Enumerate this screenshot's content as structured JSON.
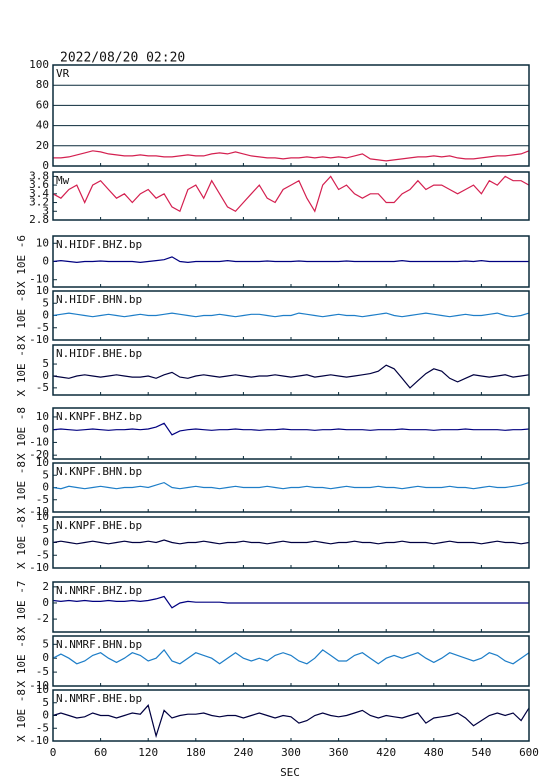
{
  "header": "2022/08/20 02:20",
  "x_axis": {
    "label": "SEC",
    "xlim": [
      0,
      600
    ],
    "xticks": [
      0,
      60,
      120,
      180,
      240,
      300,
      360,
      420,
      480,
      540,
      600
    ]
  },
  "x": [
    0,
    10,
    20,
    30,
    40,
    50,
    60,
    70,
    80,
    90,
    100,
    110,
    120,
    130,
    140,
    150,
    160,
    170,
    180,
    190,
    200,
    210,
    220,
    230,
    240,
    250,
    260,
    270,
    280,
    290,
    300,
    310,
    320,
    330,
    340,
    350,
    360,
    370,
    380,
    390,
    400,
    410,
    420,
    430,
    440,
    450,
    460,
    470,
    480,
    490,
    500,
    510,
    520,
    530,
    540,
    550,
    560,
    570,
    580,
    590,
    600
  ],
  "chart_data": [
    {
      "type": "line",
      "label": "VR",
      "color": "#d42050",
      "grid": true,
      "ylim": [
        0,
        100
      ],
      "yticks": [
        0,
        20,
        40,
        60,
        80,
        100
      ],
      "values": [
        8,
        8,
        9,
        11,
        13,
        15,
        14,
        12,
        11,
        10,
        10,
        11,
        10,
        10,
        9,
        9,
        10,
        11,
        10,
        10,
        12,
        13,
        12,
        14,
        12,
        10,
        9,
        8,
        8,
        7,
        8,
        8,
        9,
        8,
        9,
        8,
        9,
        8,
        10,
        12,
        7,
        6,
        5,
        6,
        7,
        8,
        9,
        9,
        10,
        9,
        10,
        8,
        7,
        7,
        8,
        9,
        10,
        10,
        11,
        12,
        15
      ]
    },
    {
      "type": "line",
      "label": "Mw",
      "color": "#d42050",
      "grid": false,
      "ylim": [
        2.8,
        3.9
      ],
      "yticks": [
        2.8,
        3.0,
        3.2,
        3.4,
        3.6,
        3.8
      ],
      "values": [
        3.4,
        3.3,
        3.5,
        3.6,
        3.2,
        3.6,
        3.7,
        3.5,
        3.3,
        3.4,
        3.2,
        3.4,
        3.5,
        3.3,
        3.4,
        3.1,
        3.0,
        3.5,
        3.6,
        3.3,
        3.7,
        3.4,
        3.1,
        3.0,
        3.2,
        3.4,
        3.6,
        3.3,
        3.2,
        3.5,
        3.6,
        3.7,
        3.3,
        3.0,
        3.6,
        3.8,
        3.5,
        3.6,
        3.4,
        3.3,
        3.4,
        3.4,
        3.2,
        3.2,
        3.4,
        3.5,
        3.7,
        3.5,
        3.6,
        3.6,
        3.5,
        3.4,
        3.5,
        3.6,
        3.4,
        3.7,
        3.6,
        3.8,
        3.7,
        3.7,
        3.6
      ]
    },
    {
      "type": "line",
      "label": "N.HIDF.BHZ.bp",
      "ylabel": "X 10E -6",
      "color": "#000080",
      "grid": false,
      "ylim": [
        -14,
        14
      ],
      "yticks": [
        -10,
        0,
        10
      ],
      "values": [
        0,
        0.5,
        0,
        -0.5,
        0,
        0,
        0.3,
        0,
        0,
        0,
        0,
        -0.5,
        0,
        0.5,
        1,
        2.5,
        0,
        -0.5,
        0,
        0,
        0,
        0,
        0.5,
        0,
        0,
        0,
        0,
        0.3,
        0,
        0,
        0,
        0.3,
        0,
        0,
        0,
        0,
        0,
        0.3,
        0,
        0,
        0,
        0,
        0,
        0,
        0.5,
        0,
        0,
        0,
        0,
        0,
        0,
        0,
        0.3,
        0,
        0.5,
        0,
        0,
        0,
        0,
        0,
        0
      ]
    },
    {
      "type": "line",
      "label": "N.HIDF.BHN.bp",
      "ylabel": "X 10E -8",
      "color": "#1e7ec8",
      "grid": false,
      "ylim": [
        -10,
        10
      ],
      "yticks": [
        -10,
        -5,
        0,
        5,
        10
      ],
      "values": [
        0,
        0.5,
        1,
        0.5,
        0,
        -0.5,
        0,
        0.5,
        0,
        -0.5,
        0,
        0.5,
        0,
        0,
        0.5,
        1,
        0.5,
        0,
        -0.5,
        0,
        0,
        0.5,
        0,
        -0.5,
        0,
        0.5,
        0.5,
        0,
        -0.5,
        0,
        0,
        1,
        0.5,
        0,
        -0.5,
        0,
        0.5,
        0,
        0,
        -0.5,
        0,
        0.5,
        1,
        0,
        -0.5,
        0,
        0.5,
        1,
        0.5,
        0,
        -0.5,
        0,
        0.5,
        0,
        0,
        0.5,
        1,
        0,
        -0.5,
        0,
        1
      ]
    },
    {
      "type": "line",
      "label": "N.HIDF.BHE.bp",
      "ylabel": "X 10E -8",
      "color": "#000040",
      "grid": false,
      "ylim": [
        -8,
        13
      ],
      "yticks": [
        -5,
        0,
        5
      ],
      "values": [
        0,
        -0.5,
        -1,
        0,
        0.5,
        0,
        -0.5,
        0,
        0.5,
        0,
        -0.5,
        -0.5,
        0,
        -1,
        0.5,
        1.5,
        -0.5,
        -1,
        0,
        0.5,
        0,
        -0.5,
        0,
        0.5,
        0,
        -0.5,
        0,
        0,
        0.5,
        0,
        -0.5,
        0,
        0.5,
        -0.5,
        0,
        0.5,
        0,
        -0.5,
        0,
        0.5,
        1,
        2,
        4.5,
        3,
        -1,
        -5,
        -2,
        1,
        3,
        2,
        -1,
        -2.5,
        -1,
        0.5,
        0,
        -0.5,
        0,
        0.5,
        -0.5,
        0,
        0.5
      ]
    },
    {
      "type": "line",
      "label": "N.KNPF.BHZ.bp",
      "ylabel": "X 10E -8",
      "color": "#000080",
      "grid": false,
      "ylim": [
        -23,
        17
      ],
      "yticks": [
        -20,
        -10,
        0,
        10
      ],
      "values": [
        0,
        0.5,
        0,
        -0.5,
        0,
        0.5,
        0,
        -0.5,
        0,
        0,
        0.5,
        0,
        0.5,
        2,
        5,
        -4,
        -1,
        0,
        0.5,
        0,
        -0.5,
        0,
        0,
        0.5,
        0,
        0,
        -0.5,
        0,
        0,
        0.5,
        0,
        0,
        0,
        -0.5,
        0,
        0,
        0.5,
        0,
        0,
        0,
        -0.5,
        0,
        0,
        0,
        0.5,
        0,
        0,
        0,
        -0.5,
        0,
        0,
        0,
        0.5,
        0,
        0,
        0,
        0,
        -0.5,
        0,
        0,
        0.5
      ]
    },
    {
      "type": "line",
      "label": "N.KNPF.BHN.bp",
      "ylabel": "X 10E -8",
      "color": "#1e7ec8",
      "grid": false,
      "ylim": [
        -10,
        10
      ],
      "yticks": [
        -10,
        -5,
        0,
        5,
        10
      ],
      "values": [
        0,
        -0.5,
        0.5,
        0,
        -0.5,
        0,
        0.5,
        0,
        -0.5,
        0,
        0,
        0.5,
        0,
        1,
        2,
        0,
        -0.5,
        0,
        0.5,
        0,
        0,
        -0.5,
        0,
        0.5,
        0,
        0,
        0,
        0.5,
        0,
        -0.5,
        0,
        0,
        0.5,
        0,
        0,
        -0.5,
        0,
        0.5,
        0,
        0,
        0,
        0.5,
        0,
        0,
        -0.5,
        0,
        0.5,
        0,
        0,
        0,
        0.5,
        0,
        0,
        -0.5,
        0,
        0.5,
        0,
        0,
        0.5,
        1,
        2
      ]
    },
    {
      "type": "line",
      "label": "N.KNPF.BHE.bp",
      "ylabel": "X 10E -8",
      "color": "#000040",
      "grid": false,
      "ylim": [
        -10,
        10
      ],
      "yticks": [
        -10,
        -5,
        0,
        5,
        10
      ],
      "values": [
        0,
        0.5,
        0,
        -0.5,
        0,
        0.5,
        0,
        -0.5,
        0,
        0.5,
        0,
        0,
        0.5,
        0,
        1,
        0,
        -0.5,
        0,
        0,
        0.5,
        0,
        -0.5,
        0,
        0,
        0.5,
        0,
        0,
        -0.5,
        0,
        0.5,
        0,
        0,
        0,
        0.5,
        0,
        -0.5,
        0,
        0,
        0.5,
        0,
        0,
        -0.5,
        0,
        0,
        0.5,
        0,
        0,
        0,
        -0.5,
        0,
        0.5,
        0,
        0,
        0,
        -0.5,
        0,
        0.5,
        0,
        0,
        -0.5,
        0
      ]
    },
    {
      "type": "line",
      "label": "N.NMRF.BHZ.bp",
      "ylabel": "X 10E -7",
      "color": "#000080",
      "grid": false,
      "ylim": [
        -3.6,
        2.6
      ],
      "yticks": [
        -2,
        0,
        2
      ],
      "values": [
        0.3,
        0.2,
        0.3,
        0.2,
        0.3,
        0.2,
        0.2,
        0.3,
        0.2,
        0.2,
        0.3,
        0.2,
        0.3,
        0.5,
        0.8,
        -0.6,
        0,
        0.2,
        0.1,
        0.1,
        0.1,
        0.1,
        0,
        0,
        0,
        0,
        0,
        0,
        0,
        0,
        0,
        0,
        0,
        0,
        0,
        0,
        0,
        0,
        0,
        0,
        0,
        0,
        0,
        0,
        0,
        0,
        0,
        0,
        0,
        0,
        0,
        0,
        0,
        0,
        0,
        0,
        0,
        0,
        0,
        0,
        0
      ]
    },
    {
      "type": "line",
      "label": "N.NMRF.BHN.bp",
      "ylabel": "X 10E -8",
      "color": "#1e7ec8",
      "grid": false,
      "ylim": [
        -10,
        8
      ],
      "yticks": [
        -10,
        -5,
        0,
        5
      ],
      "values": [
        0,
        1.5,
        0,
        -2,
        -1,
        1,
        2,
        0,
        -1.5,
        0,
        2,
        1,
        -1,
        0,
        3,
        -1,
        -2,
        0,
        2,
        1,
        0,
        -2,
        0,
        2,
        0,
        -1,
        0,
        -1,
        1,
        2,
        1,
        -1,
        -2,
        0,
        3,
        1,
        -1,
        -1,
        1,
        2,
        0,
        -2,
        0,
        1,
        0,
        1,
        2,
        0,
        -1.5,
        0,
        2,
        1,
        0,
        -1,
        0,
        2,
        1,
        -1,
        -2,
        0,
        2
      ]
    },
    {
      "type": "line",
      "label": "N.NMRF.BHE.bp",
      "ylabel": "X 10E -8",
      "color": "#000040",
      "grid": false,
      "ylim": [
        -10,
        10
      ],
      "yticks": [
        -10,
        -5,
        0,
        5,
        10
      ],
      "values": [
        0,
        1,
        0,
        -1,
        -0.5,
        1,
        0,
        0,
        -1,
        0,
        1,
        0.5,
        4,
        -8,
        2,
        -1,
        0,
        0.5,
        0.5,
        1,
        0,
        -0.5,
        0,
        0,
        -1,
        0,
        1,
        0,
        -1,
        0,
        -0.5,
        -3,
        -2,
        0,
        1,
        0,
        -0.5,
        0,
        1,
        2,
        0,
        -1,
        0,
        -0.5,
        -1,
        0,
        1,
        -3,
        -1,
        -0.5,
        0,
        1,
        -1,
        -4,
        -2,
        0,
        1,
        0,
        1,
        -2,
        3
      ]
    }
  ]
}
